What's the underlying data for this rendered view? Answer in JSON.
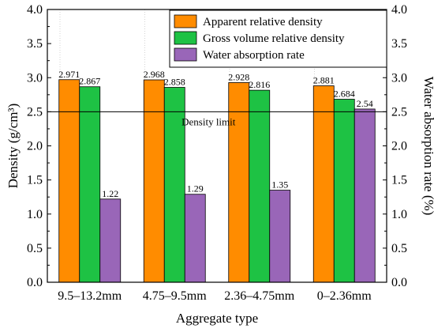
{
  "chart_data": {
    "type": "bar",
    "xlabel": "Aggregate type",
    "ylabel_left": "Density (g/cm³)",
    "ylabel_right": "Water absorption rate (%)",
    "ylim_left": [
      0,
      4
    ],
    "ylim_right": [
      0,
      4
    ],
    "yticks": [
      "0.0",
      "0.5",
      "1.0",
      "1.5",
      "2.0",
      "2.5",
      "3.0",
      "3.5",
      "4.0"
    ],
    "categories": [
      "9.5–13.2mm",
      "4.75–9.5mm",
      "2.36–4.75mm",
      "0–2.36mm"
    ],
    "series": [
      {
        "name": "Apparent relative density",
        "axis": "left",
        "color": "#ff8c00",
        "values": [
          2.971,
          2.968,
          2.928,
          2.881
        ],
        "labels": [
          "2.971",
          "2.968",
          "2.928",
          "2.881"
        ]
      },
      {
        "name": "Gross volume relative density",
        "axis": "left",
        "color": "#1ec244",
        "values": [
          2.867,
          2.858,
          2.816,
          2.684
        ],
        "labels": [
          "2.867",
          "2.858",
          "2.816",
          "2.684"
        ]
      },
      {
        "name": "Water absorption rate",
        "axis": "right",
        "color": "#9966b8",
        "values": [
          1.22,
          1.29,
          1.35,
          2.54
        ],
        "labels": [
          "1.22",
          "1.29",
          "1.35",
          "2.54"
        ]
      }
    ],
    "reference_line": {
      "value": 2.5,
      "label": "Density limit"
    },
    "legend_position": "top-right",
    "grid": "vertical dotted category separators"
  }
}
